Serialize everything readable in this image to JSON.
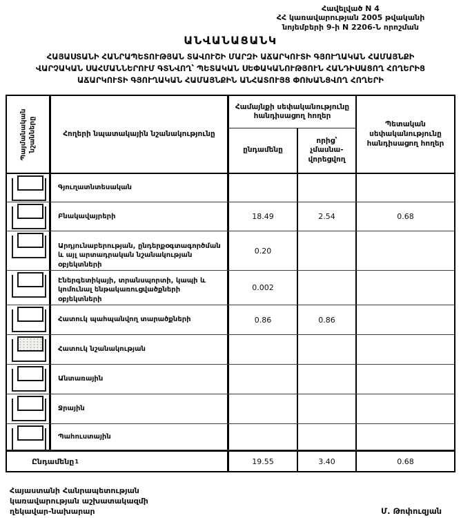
{
  "annex": {
    "line1": "Հավելված N 4",
    "line2": "ՀՀ կառավարության 2005 թվականի",
    "line3": "նոյեմբերի 9-ի N 2206-Ն որոշման"
  },
  "title": "ԱՆՎԱՆԱՑԱՆԿ",
  "subtitle": {
    "line1": "ՀԱՅԱՍՏԱՆԻ ՀԱՆՐԱՊԵՏՈՒԹՅԱՆ ՏԱՎՈՒՇԻ ՄԱՐԶԻ ԱՃԱՐԿՈՒՏԻ ԳՅՈՒՂԱԿԱՆ ՀԱՄԱՅՆՔԻ",
    "line2": "ՎԱՐՉԱԿԱՆ ՍԱՀՄԱՆՆԵՐՈՒՄ ԳՏՆՎՈՂ՝ ՊԵՏԱԿԱՆ ՍԵՓԱԿԱՆՈՒԹՅՈՒՆ ՀԱՆԴԻՍԱՑՈՂ ՀՈՂԵՐԻՑ",
    "line3": "ԱՃԱՐԿՈՒՏԻ ԳՅՈՒՂԱԿԱՆ ՀԱՄԱՅՆՔԻՆ ԱՆՀԱՏՈՒՅՑ ՓՈԽԱՆՑՎՈՂ ՀՈՂԵՐԻ"
  },
  "table": {
    "headers": {
      "symbols": "Պայմանական\nնշանները",
      "purpose": "Հողերի  նպատակային նշանակությունը",
      "community_group": "Համայնքի սեփականությունը\nհանդիսացող հողեր",
      "total": "ընդամենը",
      "of_which": "որից՝\nչմասնա-\nվորեցվող",
      "state": "Պետական\nսեփականությունը\nհանդիսացող հողեր"
    },
    "rows": [
      {
        "label": "Գյուղատնտեսական",
        "total": "",
        "of_which": "",
        "state": ""
      },
      {
        "label": "Բնակավայրերի",
        "total": "18.49",
        "of_which": "2.54",
        "state": "0.68"
      },
      {
        "label": "Արդյունաբերության, ընդերքօգտագործման և այլ արտադրական  նշանակության  օբյեկտների",
        "total": "0.20",
        "of_which": "",
        "state": ""
      },
      {
        "label": "Էներգետիկայի,  տրանսպորտի,  կապի  և կոմունալ ենթակառուցվածքների  օբյեկտների",
        "total": "0.002",
        "of_which": "",
        "state": ""
      },
      {
        "label": "Հատուկ պահպանվող տարածքների",
        "total": "0.86",
        "of_which": "0.86",
        "state": ""
      },
      {
        "label": "Հատուկ նշանակության",
        "total": "",
        "of_which": "",
        "state": ""
      },
      {
        "label": "Անտառային",
        "total": "",
        "of_which": "",
        "state": ""
      },
      {
        "label": "Ջրային",
        "total": "",
        "of_which": "",
        "state": ""
      },
      {
        "label": "Պահուստային",
        "total": "",
        "of_which": "",
        "state": ""
      }
    ],
    "footer": {
      "label": "Ընդամենը",
      "footnote_mark": "1",
      "total": "19.55",
      "of_which": "3.40",
      "state": "0.68"
    }
  },
  "signature": {
    "line1": "Հայաստանի Հանրապետության",
    "line2": "կառավարության աշխատակազմի",
    "line3": "ղեկավար-նախարար",
    "name": "Մ. Թոփուզյան"
  }
}
